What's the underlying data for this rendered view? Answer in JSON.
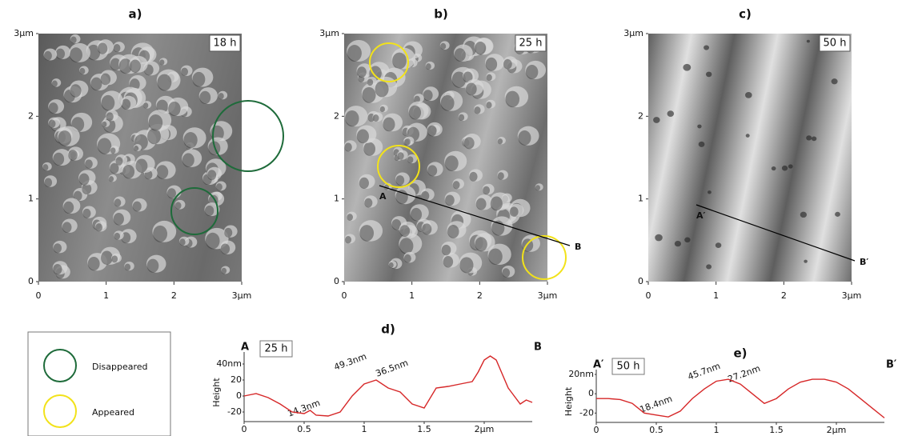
{
  "panels": [
    {
      "label": "a)",
      "time": "18 h",
      "markers": []
    },
    {
      "label": "b)",
      "time": "25 h",
      "markers": [
        "A",
        "B"
      ]
    },
    {
      "label": "c)",
      "time": "50 h",
      "markers": [
        "A′",
        "B′"
      ]
    }
  ],
  "image_ticks": [
    0,
    1,
    2,
    {
      "value": 3,
      "label": "3µm"
    }
  ],
  "legend": {
    "items": [
      {
        "label": "Disappeared",
        "color": "#1e6b3a"
      },
      {
        "label": "Appeared",
        "color": "#f2e21a"
      }
    ]
  },
  "chart_data": [
    {
      "type": "line",
      "title": "d)",
      "time_label": "25 h",
      "start_label": "A",
      "end_label": "B",
      "ylabel": "Height",
      "annotations": [
        "14.3nm",
        "49.3nm",
        "36.5nm"
      ],
      "x": [
        0,
        0.1,
        0.2,
        0.3,
        0.4,
        0.5,
        0.55,
        0.6,
        0.7,
        0.8,
        0.9,
        1.0,
        1.1,
        1.2,
        1.3,
        1.4,
        1.5,
        1.6,
        1.7,
        1.8,
        1.9,
        1.95,
        2.0,
        2.05,
        2.1,
        2.2,
        2.3,
        2.35,
        2.4
      ],
      "series": [
        {
          "color": "#d62728",
          "values": [
            0,
            3,
            -2,
            -10,
            -20,
            -22,
            -18,
            -24,
            -25,
            -20,
            0,
            15,
            20,
            10,
            5,
            -10,
            -15,
            10,
            12,
            15,
            18,
            30,
            45,
            50,
            45,
            10,
            -10,
            -5,
            -8
          ]
        }
      ],
      "xlim": [
        0,
        2.4
      ],
      "ylim": [
        -30,
        55
      ],
      "xticks": [
        0,
        0.5,
        1,
        1.5,
        {
          "value": 2,
          "label": "2µm"
        }
      ],
      "yticks": [
        {
          "value": 40,
          "label": "40nm"
        },
        20,
        0,
        -20
      ]
    },
    {
      "type": "line",
      "title": "e)",
      "time_label": "50 h",
      "start_label": "A′",
      "end_label": "B′",
      "ylabel": "Height",
      "annotations": [
        "18.4nm",
        "45.7nm",
        "27.2nm"
      ],
      "x": [
        0,
        0.1,
        0.2,
        0.3,
        0.4,
        0.5,
        0.6,
        0.7,
        0.8,
        0.9,
        1.0,
        1.1,
        1.2,
        1.3,
        1.4,
        1.5,
        1.6,
        1.7,
        1.8,
        1.9,
        2.0,
        2.1,
        2.2,
        2.3,
        2.4
      ],
      "series": [
        {
          "color": "#d62728",
          "values": [
            -5,
            -5,
            -6,
            -10,
            -20,
            -22,
            -24,
            -18,
            -5,
            5,
            13,
            15,
            10,
            0,
            -10,
            -5,
            5,
            12,
            15,
            15,
            12,
            5,
            -5,
            -15,
            -25
          ]
        }
      ],
      "xlim": [
        0,
        2.4
      ],
      "ylim": [
        -28,
        25
      ],
      "xticks": [
        0,
        0.5,
        1,
        1.5,
        {
          "value": 2,
          "label": "2µm"
        }
      ],
      "yticks": [
        {
          "value": 20,
          "label": "20nm"
        },
        0,
        -20
      ]
    }
  ]
}
